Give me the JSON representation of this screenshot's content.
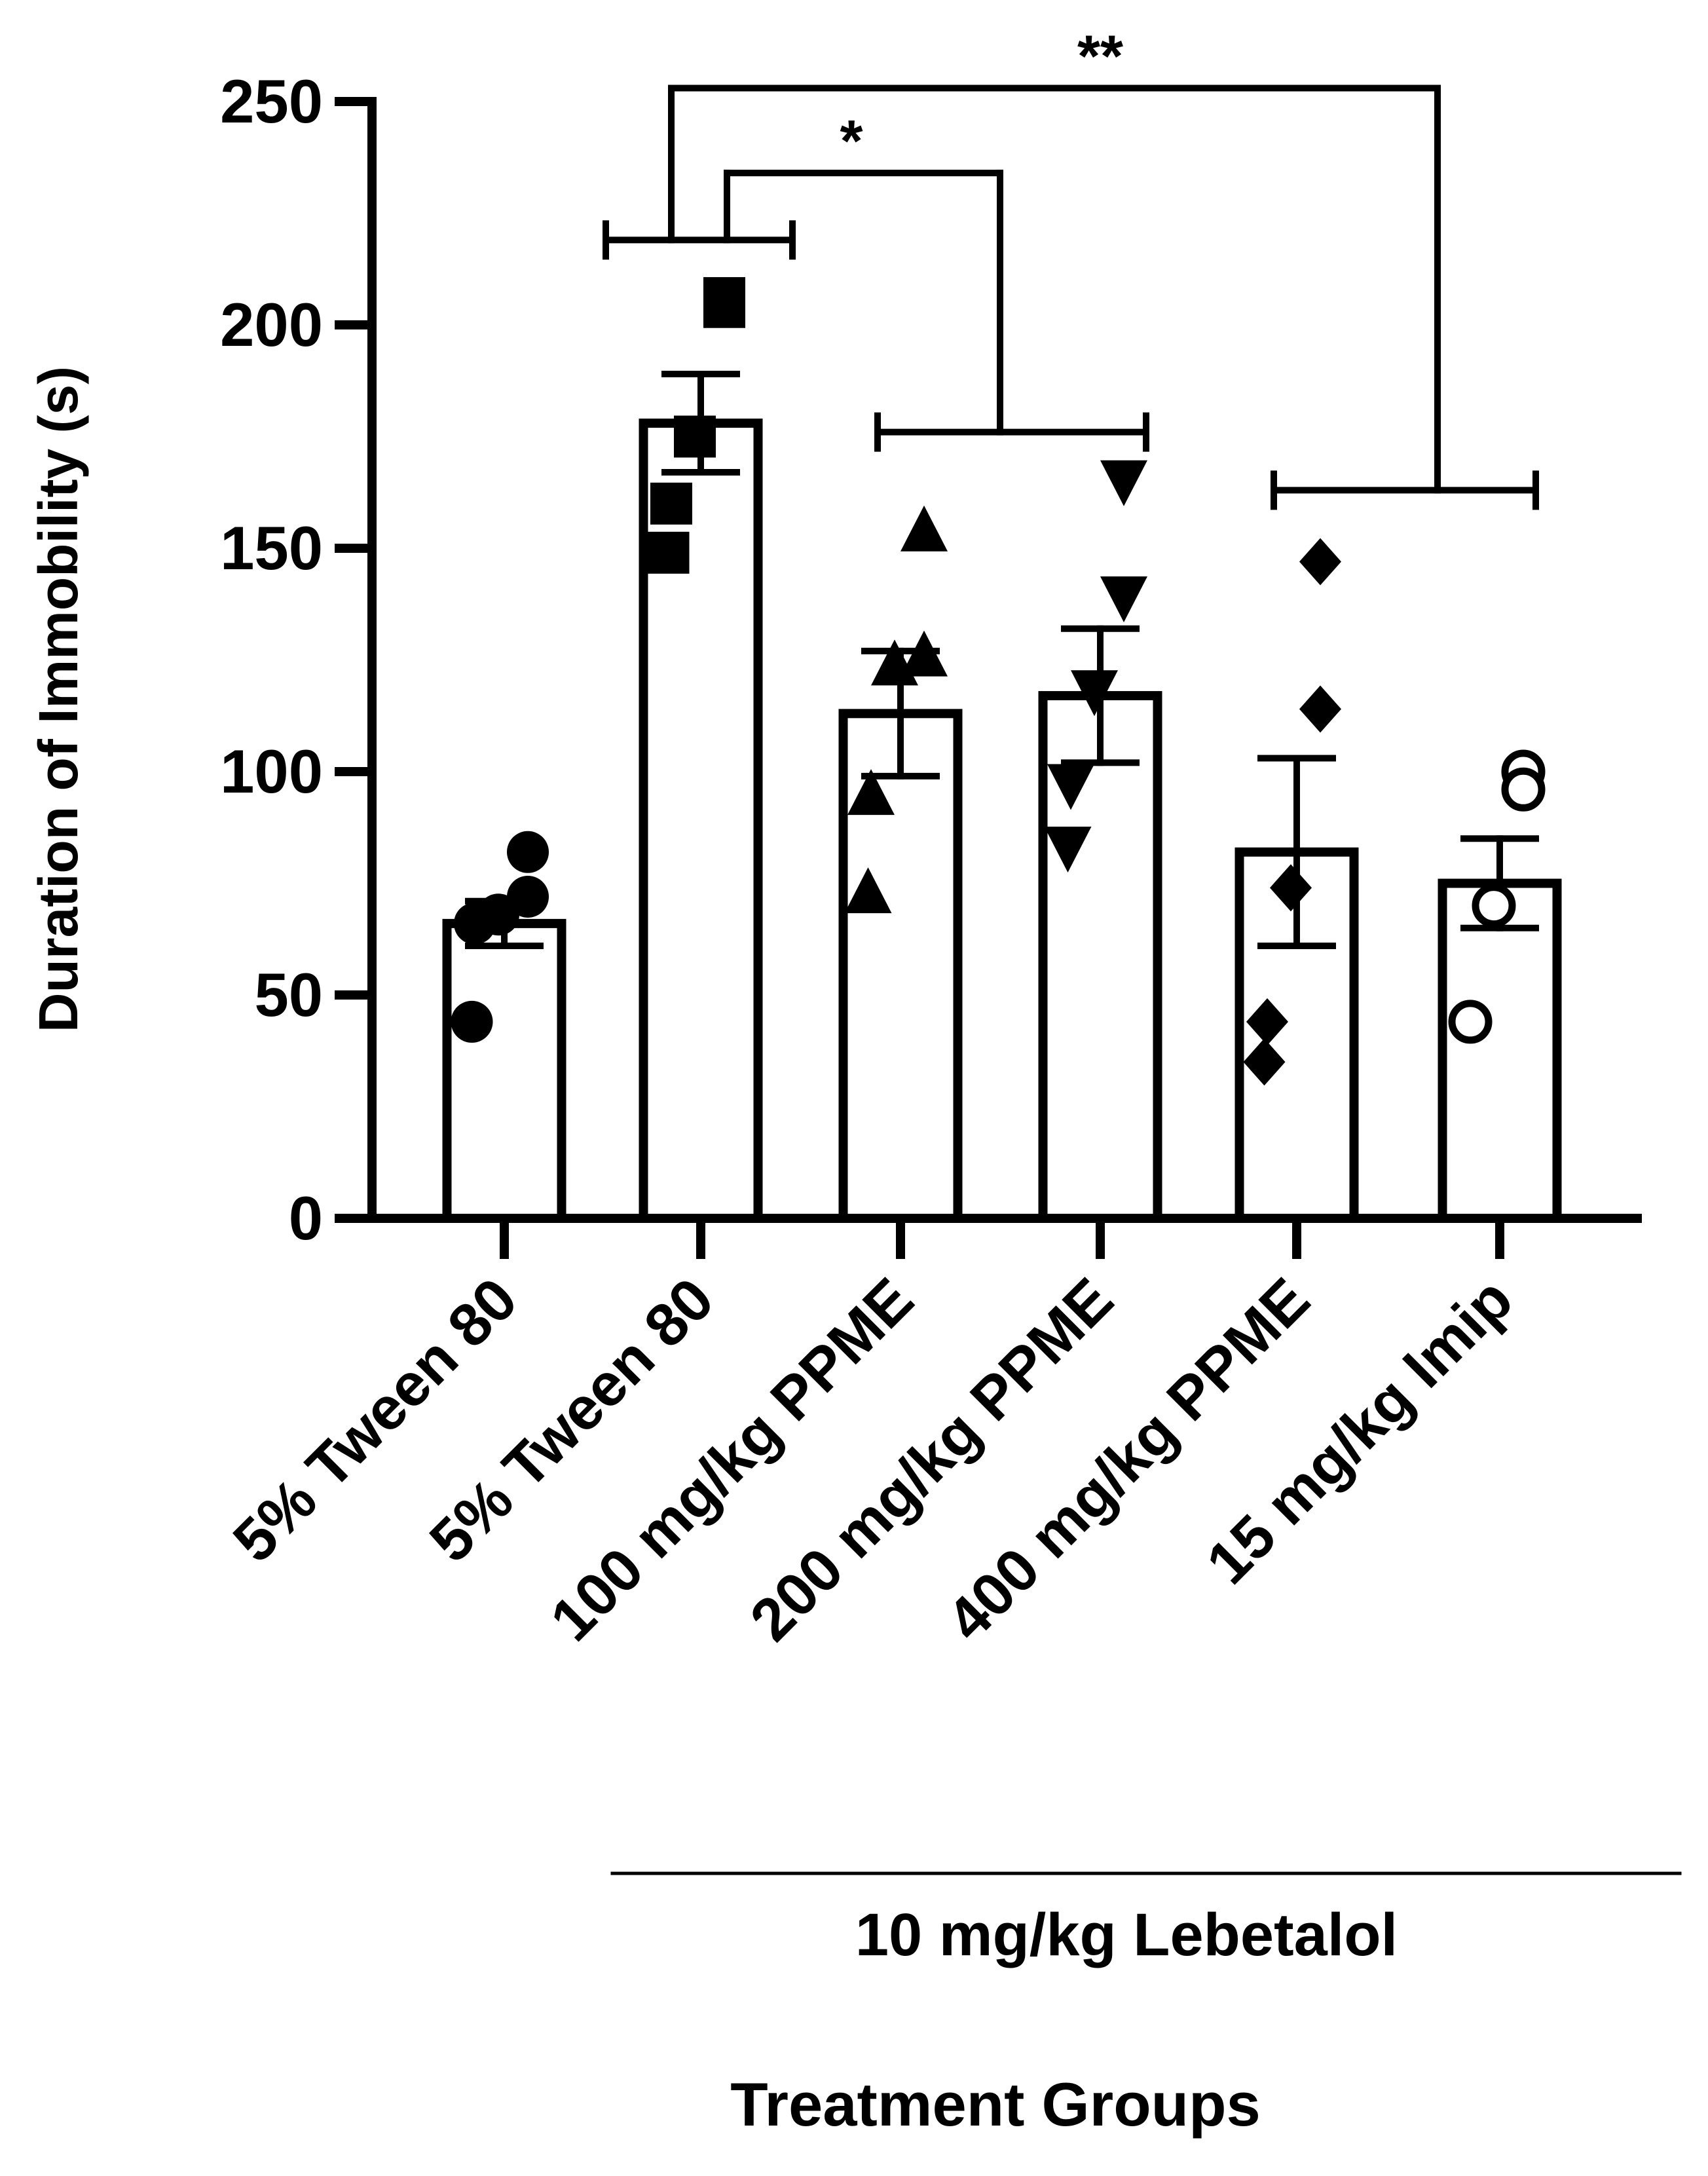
{
  "chart_data": {
    "type": "bar",
    "ylabel": "Duration of Immobility (s)",
    "xlabel": "Treatment Groups",
    "ylim": [
      0,
      250
    ],
    "yticks": [
      0,
      50,
      100,
      150,
      200,
      250
    ],
    "grid": false,
    "categories": [
      "5% Tween 80",
      "5% Tween 80",
      "100 mg/kg PPME",
      "200 mg/kg PPME",
      "400 mg/kg PPME",
      "15 mg/kg Imip"
    ],
    "values": [
      66,
      178,
      113,
      117,
      82,
      75
    ],
    "errors": [
      5,
      11,
      14,
      15,
      21,
      10
    ],
    "markers": [
      "circle",
      "square",
      "triangle-up",
      "triangle-down",
      "diamond",
      "open-circle"
    ],
    "points": [
      [
        82,
        72,
        68,
        66,
        44
      ],
      [
        206,
        204,
        175,
        160,
        149
      ],
      [
        154,
        126,
        124,
        95,
        73
      ],
      [
        165,
        139,
        118,
        97,
        83
      ],
      [
        147,
        114,
        74,
        44,
        35
      ],
      [
        100,
        96,
        70,
        44
      ]
    ],
    "group_bracket_label": "10 mg/kg Lebetalol",
    "significance": [
      {
        "label": "*",
        "from": 1,
        "to": 3
      },
      {
        "label": "**",
        "from": 1,
        "to": 5
      }
    ]
  }
}
